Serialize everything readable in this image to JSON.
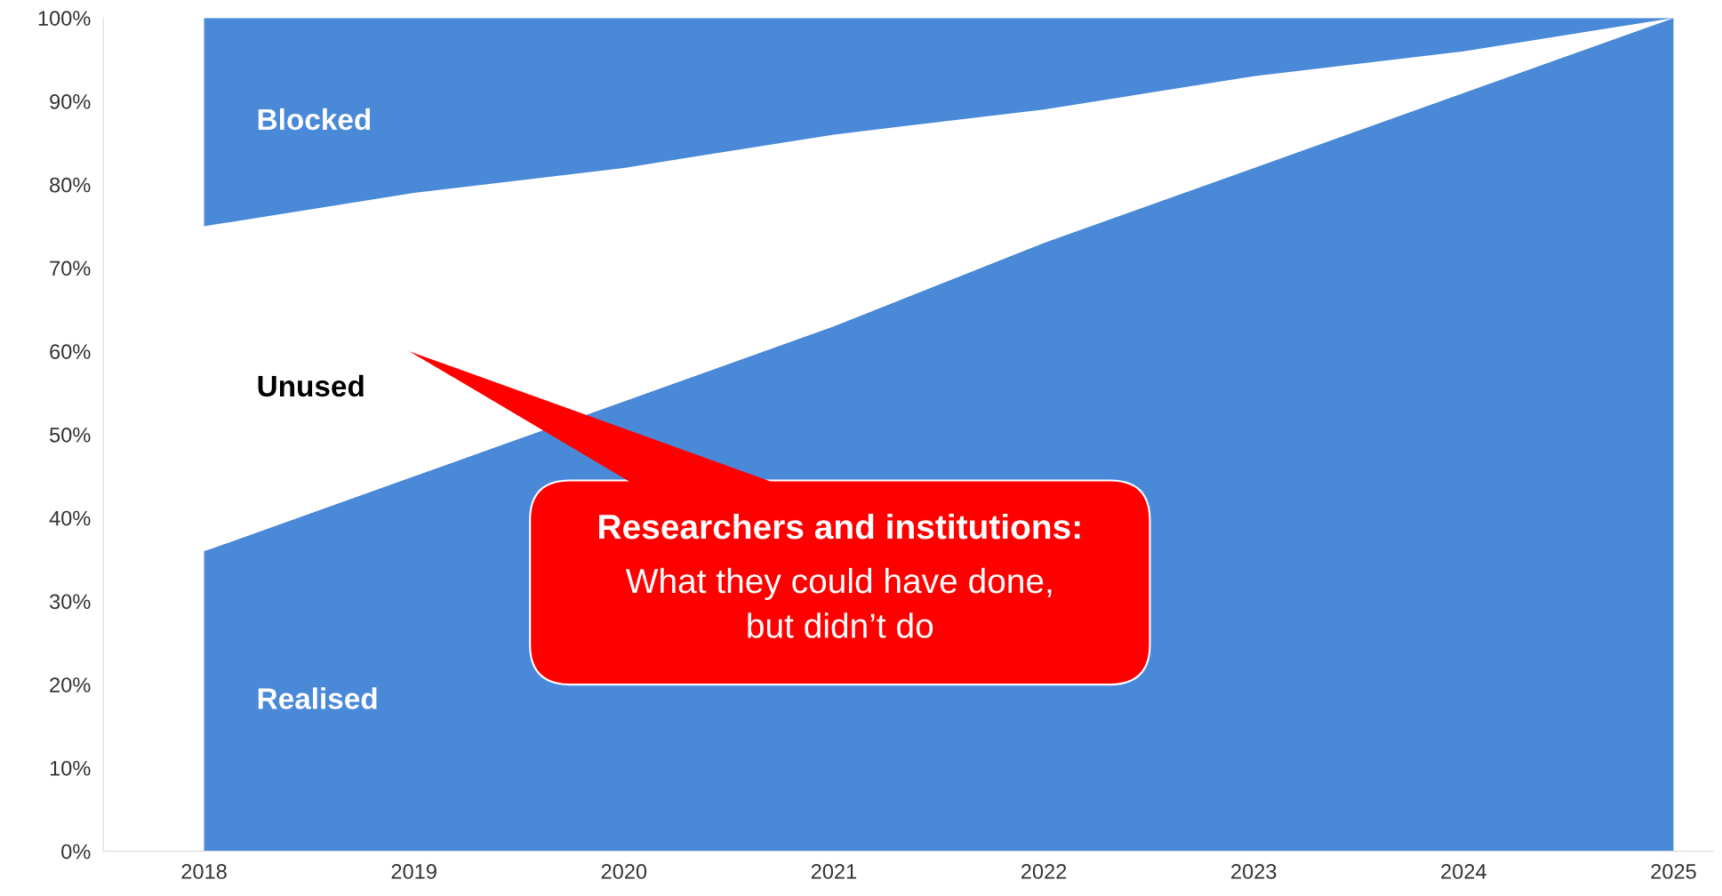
{
  "chart_data": {
    "type": "area",
    "stacked": true,
    "x": [
      2018,
      2019,
      2020,
      2021,
      2022,
      2023,
      2024,
      2025
    ],
    "series": [
      {
        "name": "Realised",
        "color": "#4a89d8",
        "values": [
          36,
          45,
          54,
          63,
          73,
          82,
          91,
          100
        ]
      },
      {
        "name": "Unused",
        "color": "#ffffff",
        "values": [
          39,
          34,
          28,
          23,
          16,
          11,
          5,
          0
        ]
      },
      {
        "name": "Blocked",
        "color": "#4a89d8",
        "values": [
          25,
          21,
          18,
          14,
          11,
          7,
          4,
          0
        ]
      }
    ],
    "xlim": [
      2017.52,
      2025.19
    ],
    "xticks": [
      2018,
      2019,
      2020,
      2021,
      2022,
      2023,
      2024,
      2025
    ],
    "ylim": [
      0,
      100
    ],
    "yticks": [
      {
        "value": 0,
        "label": "0%"
      },
      {
        "value": 10,
        "label": "10%"
      },
      {
        "value": 20,
        "label": "20%"
      },
      {
        "value": 30,
        "label": "30%"
      },
      {
        "value": 40,
        "label": "40%"
      },
      {
        "value": 50,
        "label": "50%"
      },
      {
        "value": 60,
        "label": "60%"
      },
      {
        "value": 70,
        "label": "70%"
      },
      {
        "value": 80,
        "label": "80%"
      },
      {
        "value": 90,
        "label": "90%"
      },
      {
        "value": 100,
        "label": "100%"
      }
    ],
    "grid": false,
    "legend": false,
    "annotations": [
      "Researchers and institutions:",
      "What they could have done,\nbut didn’t do"
    ]
  }
}
